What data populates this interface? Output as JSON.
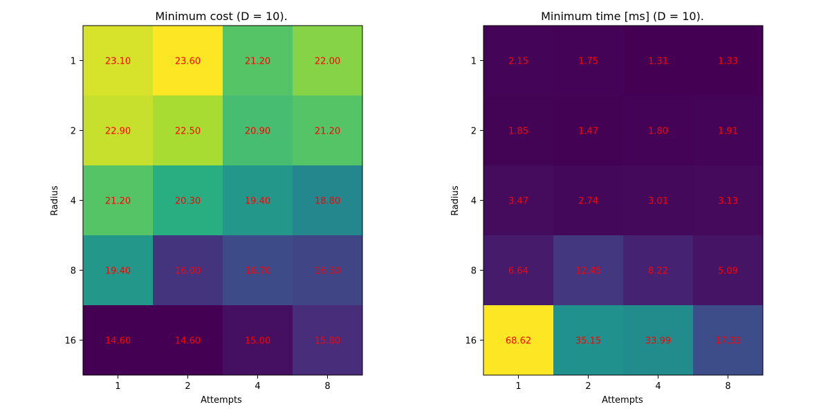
{
  "chart_data": [
    {
      "type": "heatmap",
      "title": "Minimum cost (D = 10).",
      "xlabel": "Attempts",
      "ylabel": "Radius",
      "x": [
        "1",
        "2",
        "4",
        "8"
      ],
      "y": [
        "1",
        "2",
        "4",
        "8",
        "16"
      ],
      "values": [
        [
          23.1,
          23.6,
          21.2,
          22.0
        ],
        [
          22.9,
          22.5,
          20.9,
          21.2
        ],
        [
          21.2,
          20.3,
          19.4,
          18.8
        ],
        [
          19.4,
          16.0,
          16.7,
          16.5
        ],
        [
          14.6,
          14.6,
          15.0,
          15.8
        ]
      ],
      "labels": [
        [
          "23.10",
          "23.60",
          "21.20",
          "22.00"
        ],
        [
          "22.90",
          "22.50",
          "20.90",
          "21.20"
        ],
        [
          "21.20",
          "20.30",
          "19.40",
          "18.80"
        ],
        [
          "19.40",
          "16.00",
          "16.70",
          "16.50"
        ],
        [
          "14.60",
          "14.60",
          "15.00",
          "15.80"
        ]
      ],
      "colormap": "viridis",
      "label_color": "#ff0000"
    },
    {
      "type": "heatmap",
      "title": "Minimum time [ms] (D = 10).",
      "xlabel": "Attempts",
      "ylabel": "Radius",
      "x": [
        "1",
        "2",
        "4",
        "8"
      ],
      "y": [
        "1",
        "2",
        "4",
        "8",
        "16"
      ],
      "values": [
        [
          2.15,
          1.75,
          1.31,
          1.33
        ],
        [
          1.85,
          1.47,
          1.8,
          1.91
        ],
        [
          3.47,
          2.74,
          3.01,
          3.13
        ],
        [
          6.64,
          12.45,
          8.22,
          5.09
        ],
        [
          68.62,
          35.15,
          33.99,
          17.33
        ]
      ],
      "labels": [
        [
          "2.15",
          "1.75",
          "1.31",
          "1.33"
        ],
        [
          "1.85",
          "1.47",
          "1.80",
          "1.91"
        ],
        [
          "3.47",
          "2.74",
          "3.01",
          "3.13"
        ],
        [
          "6.64",
          "12.45",
          "8.22",
          "5.09"
        ],
        [
          "68.62",
          "35.15",
          "33.99",
          "17.33"
        ]
      ],
      "colormap": "viridis",
      "label_color": "#ff0000"
    }
  ]
}
